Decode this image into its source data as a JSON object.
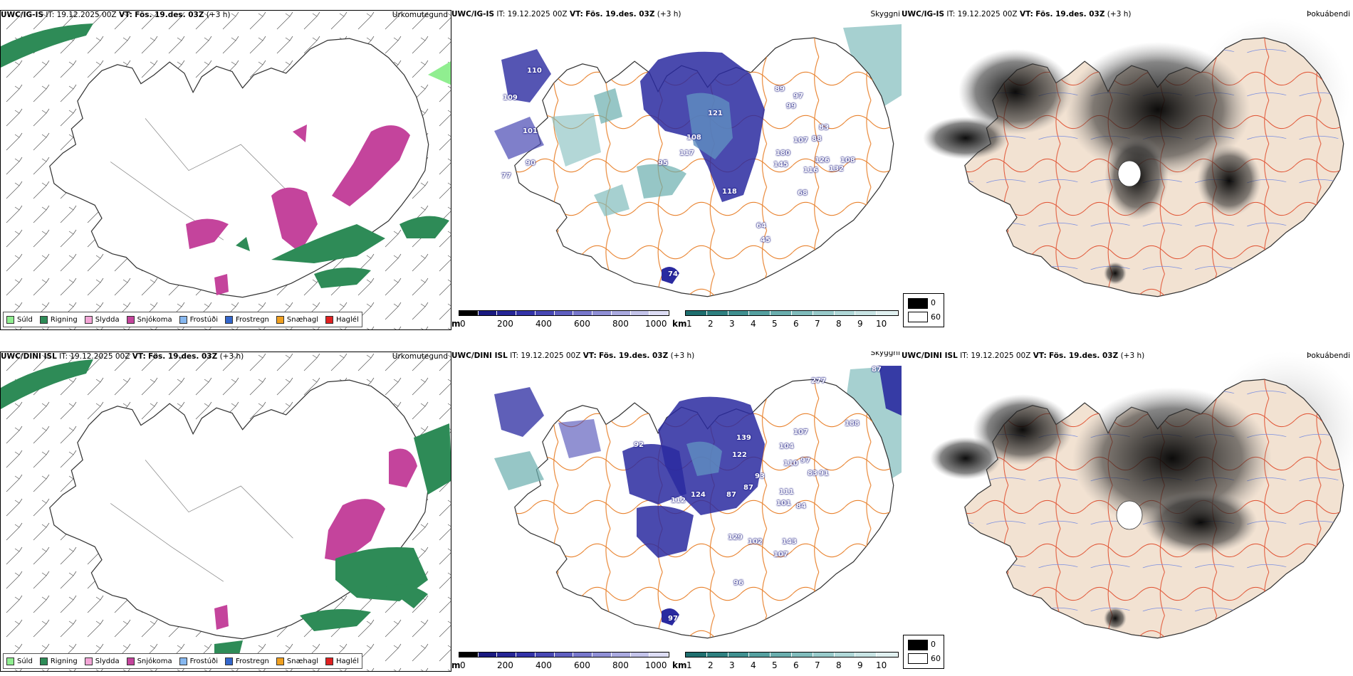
{
  "rows": [
    {
      "model": "UWC/IG-IS",
      "it_label": "IT:",
      "it_value": "19.12.2025 00Z",
      "vt_label": "VT:",
      "vt_value": "Fös. 19.des. 03Z",
      "lead": "(+3 h)",
      "cloud_labels": [
        "101",
        "110",
        "109",
        "90",
        "108",
        "117",
        "95",
        "121",
        "118",
        "107",
        "180",
        "145",
        "116",
        "126",
        "132",
        "108",
        "99",
        "97",
        "89",
        "64",
        "45",
        "74",
        "77",
        "68",
        "83",
        "88"
      ]
    },
    {
      "model": "UWC/DINI ISL",
      "it_label": "IT:",
      "it_value": "19.12.2025 00Z",
      "vt_label": "VT:",
      "vt_value": "Fös. 19.des. 03Z",
      "lead": "(+3 h)",
      "cloud_labels": [
        "87",
        "277",
        "188",
        "92",
        "122",
        "139",
        "104",
        "107",
        "110",
        "97",
        "83",
        "91",
        "112",
        "124",
        "129",
        "102",
        "143",
        "111",
        "101",
        "84",
        "93",
        "87",
        "87",
        "107",
        "96",
        "97"
      ]
    }
  ],
  "panel_titles": {
    "precip": "Úrkomutegund",
    "cloud": "Skyggni",
    "fog": "Þokuábendi"
  },
  "precip_legend": [
    {
      "label": "Súld",
      "color": "#90ee90"
    },
    {
      "label": "Rigning",
      "color": "#2e8b57"
    },
    {
      "label": "Slydda",
      "color": "#f4a6d7"
    },
    {
      "label": "Snjókoma",
      "color": "#c4449c"
    },
    {
      "label": "Frostúði",
      "color": "#87b8f0"
    },
    {
      "label": "Frostregn",
      "color": "#3366cc"
    },
    {
      "label": "Snæhagl",
      "color": "#f0a020"
    },
    {
      "label": "Haglél",
      "color": "#e02020"
    }
  ],
  "height_bar": {
    "unit": "m",
    "ticks": [
      "0",
      "200",
      "400",
      "600",
      "800",
      "1000"
    ],
    "colors": [
      "#000000",
      "#1a1a80",
      "#262696",
      "#3333a8",
      "#4848b4",
      "#5f5fc0",
      "#7878cc",
      "#9090d6",
      "#aaaae0",
      "#c4c4ea",
      "#dcdcf4"
    ]
  },
  "vis_bar": {
    "unit": "km",
    "ticks": [
      "1",
      "2",
      "3",
      "4",
      "5",
      "6",
      "7",
      "8",
      "9",
      "10"
    ],
    "colors": [
      "#1f6f6f",
      "#2e8080",
      "#409090",
      "#55a0a0",
      "#6aaeae",
      "#80bcbc",
      "#98caca",
      "#b0d8d8",
      "#c8e4e4",
      "#e0f0f0"
    ]
  },
  "fog_legend": {
    "top": "0",
    "bottom": "60"
  }
}
